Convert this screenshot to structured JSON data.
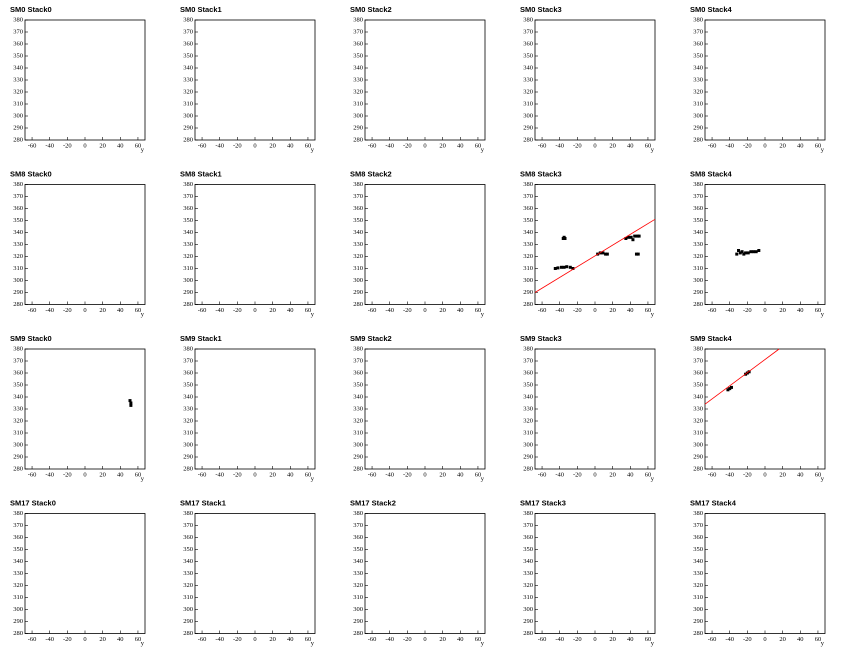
{
  "chart_data": [
    {
      "type": "scatter",
      "title": "SM0 Stack0",
      "x_label": "y",
      "xlim": [
        -68,
        68
      ],
      "ylim": [
        280,
        380
      ],
      "xticks": [
        -60,
        -40,
        -20,
        0,
        20,
        40,
        60
      ],
      "yticks": [
        280,
        290,
        300,
        310,
        320,
        330,
        340,
        350,
        360,
        370,
        380
      ]
    },
    {
      "type": "scatter",
      "title": "SM0 Stack1",
      "x_label": "y",
      "xlim": [
        -68,
        68
      ],
      "ylim": [
        280,
        380
      ],
      "xticks": [
        -60,
        -40,
        -20,
        0,
        20,
        40,
        60
      ],
      "yticks": [
        280,
        290,
        300,
        310,
        320,
        330,
        340,
        350,
        360,
        370,
        380
      ]
    },
    {
      "type": "scatter",
      "title": "SM0 Stack2",
      "x_label": "y",
      "xlim": [
        -68,
        68
      ],
      "ylim": [
        280,
        380
      ],
      "xticks": [
        -60,
        -40,
        -20,
        0,
        20,
        40,
        60
      ],
      "yticks": [
        280,
        290,
        300,
        310,
        320,
        330,
        340,
        350,
        360,
        370,
        380
      ]
    },
    {
      "type": "scatter",
      "title": "SM0 Stack3",
      "x_label": "y",
      "xlim": [
        -68,
        68
      ],
      "ylim": [
        280,
        380
      ],
      "xticks": [
        -60,
        -40,
        -20,
        0,
        20,
        40,
        60
      ],
      "yticks": [
        280,
        290,
        300,
        310,
        320,
        330,
        340,
        350,
        360,
        370,
        380
      ]
    },
    {
      "type": "scatter",
      "title": "SM0 Stack4",
      "x_label": "y",
      "xlim": [
        -68,
        68
      ],
      "ylim": [
        280,
        380
      ],
      "xticks": [
        -60,
        -40,
        -20,
        0,
        20,
        40,
        60
      ],
      "yticks": [
        280,
        290,
        300,
        310,
        320,
        330,
        340,
        350,
        360,
        370,
        380
      ]
    },
    {
      "type": "scatter",
      "title": "SM8 Stack0",
      "x_label": "y",
      "xlim": [
        -68,
        68
      ],
      "ylim": [
        280,
        380
      ],
      "xticks": [
        -60,
        -40,
        -20,
        0,
        20,
        40,
        60
      ],
      "yticks": [
        280,
        290,
        300,
        310,
        320,
        330,
        340,
        350,
        360,
        370,
        380
      ]
    },
    {
      "type": "scatter",
      "title": "SM8 Stack1",
      "x_label": "y",
      "xlim": [
        -68,
        68
      ],
      "ylim": [
        280,
        380
      ],
      "xticks": [
        -60,
        -40,
        -20,
        0,
        20,
        40,
        60
      ],
      "yticks": [
        280,
        290,
        300,
        310,
        320,
        330,
        340,
        350,
        360,
        370,
        380
      ]
    },
    {
      "type": "scatter",
      "title": "SM8 Stack2",
      "x_label": "y",
      "xlim": [
        -68,
        68
      ],
      "ylim": [
        280,
        380
      ],
      "xticks": [
        -60,
        -40,
        -20,
        0,
        20,
        40,
        60
      ],
      "yticks": [
        280,
        290,
        300,
        310,
        320,
        330,
        340,
        350,
        360,
        370,
        380
      ]
    },
    {
      "type": "scatter",
      "title": "SM8 Stack3",
      "x_label": "y",
      "xlim": [
        -68,
        68
      ],
      "ylim": [
        280,
        380
      ],
      "xticks": [
        -60,
        -40,
        -20,
        0,
        20,
        40,
        60
      ],
      "yticks": [
        280,
        290,
        300,
        310,
        320,
        330,
        340,
        350,
        360,
        370,
        380
      ],
      "points": {
        "color": "#000000",
        "x": [
          -45,
          -42,
          -38,
          -35,
          -32,
          -28,
          -25,
          -36,
          -35,
          -34,
          3,
          6,
          9,
          12,
          14,
          35,
          38,
          41,
          43,
          45,
          48,
          50,
          47,
          49
        ],
        "y": [
          310,
          310.5,
          311,
          311,
          311.5,
          311,
          310,
          335,
          336,
          335,
          322,
          323,
          323,
          322,
          322,
          335,
          336,
          336,
          334,
          337,
          337,
          337,
          322,
          322
        ]
      },
      "fit_line": {
        "color": "#ff0000",
        "x": [
          -68,
          68
        ],
        "y": [
          290,
          351
        ]
      }
    },
    {
      "type": "scatter",
      "title": "SM8 Stack4",
      "x_label": "y",
      "xlim": [
        -68,
        68
      ],
      "ylim": [
        280,
        380
      ],
      "xticks": [
        -60,
        -40,
        -20,
        0,
        20,
        40,
        60
      ],
      "yticks": [
        280,
        290,
        300,
        310,
        320,
        330,
        340,
        350,
        360,
        370,
        380
      ],
      "points": {
        "color": "#000000",
        "x": [
          -32,
          -30,
          -28,
          -26,
          -24,
          -22,
          -19,
          -16,
          -13,
          -10,
          -7
        ],
        "y": [
          322,
          325,
          323,
          324,
          322,
          323,
          323,
          324,
          324,
          324,
          325
        ]
      }
    },
    {
      "type": "scatter",
      "title": "SM9 Stack0",
      "x_label": "y",
      "xlim": [
        -68,
        68
      ],
      "ylim": [
        280,
        380
      ],
      "xticks": [
        -60,
        -40,
        -20,
        0,
        20,
        40,
        60
      ],
      "yticks": [
        280,
        290,
        300,
        310,
        320,
        330,
        340,
        350,
        360,
        370,
        380
      ],
      "points": {
        "color": "#000000",
        "x": [
          51,
          52,
          52
        ],
        "y": [
          337,
          335,
          333
        ]
      }
    },
    {
      "type": "scatter",
      "title": "SM9 Stack1",
      "x_label": "y",
      "xlim": [
        -68,
        68
      ],
      "ylim": [
        280,
        380
      ],
      "xticks": [
        -60,
        -40,
        -20,
        0,
        20,
        40,
        60
      ],
      "yticks": [
        280,
        290,
        300,
        310,
        320,
        330,
        340,
        350,
        360,
        370,
        380
      ]
    },
    {
      "type": "scatter",
      "title": "SM9 Stack2",
      "x_label": "y",
      "xlim": [
        -68,
        68
      ],
      "ylim": [
        280,
        380
      ],
      "xticks": [
        -60,
        -40,
        -20,
        0,
        20,
        40,
        60
      ],
      "yticks": [
        280,
        290,
        300,
        310,
        320,
        330,
        340,
        350,
        360,
        370,
        380
      ]
    },
    {
      "type": "scatter",
      "title": "SM9 Stack3",
      "x_label": "y",
      "xlim": [
        -68,
        68
      ],
      "ylim": [
        280,
        380
      ],
      "xticks": [
        -60,
        -40,
        -20,
        0,
        20,
        40,
        60
      ],
      "yticks": [
        280,
        290,
        300,
        310,
        320,
        330,
        340,
        350,
        360,
        370,
        380
      ]
    },
    {
      "type": "scatter",
      "title": "SM9 Stack4",
      "x_label": "y",
      "xlim": [
        -68,
        68
      ],
      "ylim": [
        280,
        380
      ],
      "xticks": [
        -60,
        -40,
        -20,
        0,
        20,
        40,
        60
      ],
      "yticks": [
        280,
        290,
        300,
        310,
        320,
        330,
        340,
        350,
        360,
        370,
        380
      ],
      "points": {
        "color": "#000000",
        "x": [
          -42,
          -40,
          -38,
          -22,
          -20,
          -18
        ],
        "y": [
          346,
          347,
          348,
          359,
          360,
          361
        ]
      },
      "fit_line": {
        "color": "#ff0000",
        "x": [
          -68,
          16
        ],
        "y": [
          334,
          380
        ]
      }
    },
    {
      "type": "scatter",
      "title": "SM17 Stack0",
      "x_label": "y",
      "xlim": [
        -68,
        68
      ],
      "ylim": [
        280,
        380
      ],
      "xticks": [
        -60,
        -40,
        -20,
        0,
        20,
        40,
        60
      ],
      "yticks": [
        280,
        290,
        300,
        310,
        320,
        330,
        340,
        350,
        360,
        370,
        380
      ]
    },
    {
      "type": "scatter",
      "title": "SM17 Stack1",
      "x_label": "y",
      "xlim": [
        -68,
        68
      ],
      "ylim": [
        280,
        380
      ],
      "xticks": [
        -60,
        -40,
        -20,
        0,
        20,
        40,
        60
      ],
      "yticks": [
        280,
        290,
        300,
        310,
        320,
        330,
        340,
        350,
        360,
        370,
        380
      ]
    },
    {
      "type": "scatter",
      "title": "SM17 Stack2",
      "x_label": "y",
      "xlim": [
        -68,
        68
      ],
      "ylim": [
        280,
        380
      ],
      "xticks": [
        -60,
        -40,
        -20,
        0,
        20,
        40,
        60
      ],
      "yticks": [
        280,
        290,
        300,
        310,
        320,
        330,
        340,
        350,
        360,
        370,
        380
      ]
    },
    {
      "type": "scatter",
      "title": "SM17 Stack3",
      "x_label": "y",
      "xlim": [
        -68,
        68
      ],
      "ylim": [
        280,
        380
      ],
      "xticks": [
        -60,
        -40,
        -20,
        0,
        20,
        40,
        60
      ],
      "yticks": [
        280,
        290,
        300,
        310,
        320,
        330,
        340,
        350,
        360,
        370,
        380
      ]
    },
    {
      "type": "scatter",
      "title": "SM17 Stack4",
      "x_label": "y",
      "xlim": [
        -68,
        68
      ],
      "ylim": [
        280,
        380
      ],
      "xticks": [
        -60,
        -40,
        -20,
        0,
        20,
        40,
        60
      ],
      "yticks": [
        280,
        290,
        300,
        310,
        320,
        330,
        340,
        350,
        360,
        370,
        380
      ]
    }
  ]
}
